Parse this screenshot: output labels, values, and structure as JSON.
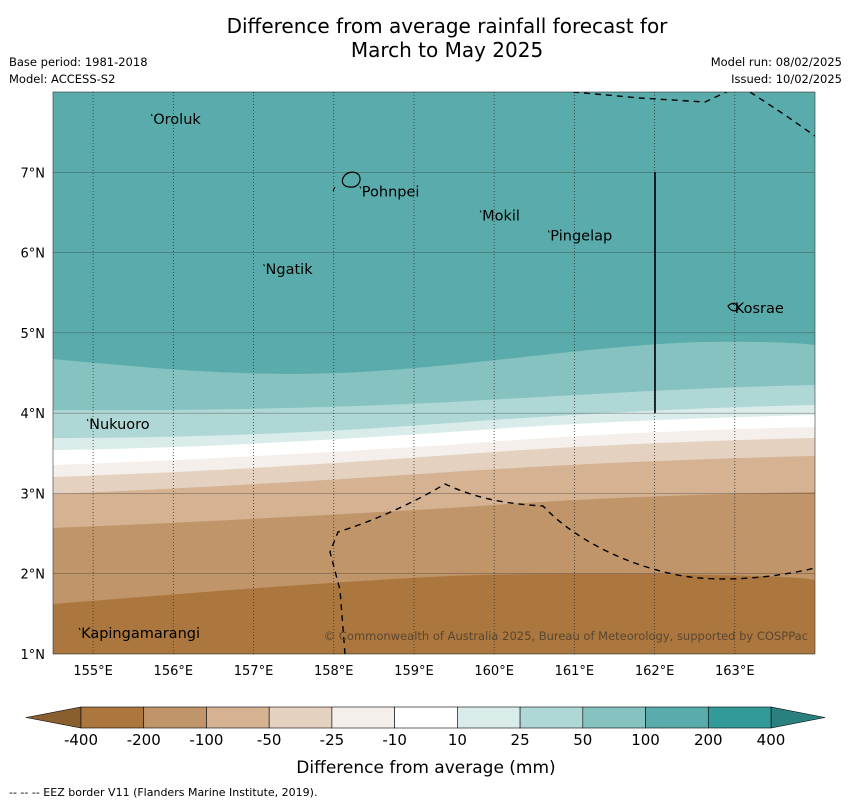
{
  "title_line1": "Difference from average rainfall forecast for",
  "title_line2": "March to May 2025",
  "base_period": "Base period: 1981-2018",
  "model": "Model: ACCESS-S2",
  "model_run": "Model run: 08/02/2025",
  "issued": "Issued: 10/02/2025",
  "copyright": "© Commonwealth of Australia 2025, Bureau of Meteorology, supported by COSPPac",
  "footer_note": "--  --  -- EEZ border V11 (Flanders Marine Institute, 2019).",
  "map": {
    "lon_min": 154.5,
    "lon_max": 164.0,
    "lat_min": 1.0,
    "lat_max": 8.0,
    "lon_ticks": [
      155,
      156,
      157,
      158,
      159,
      160,
      161,
      162,
      163
    ],
    "lon_tick_labels": [
      "155°E",
      "156°E",
      "157°E",
      "158°E",
      "159°E",
      "160°E",
      "161°E",
      "162°E",
      "163°E"
    ],
    "lat_ticks": [
      1,
      2,
      3,
      4,
      5,
      6,
      7
    ],
    "lat_tick_labels": [
      "1°N",
      "2°N",
      "3°N",
      "4°N",
      "5°N",
      "6°N",
      "7°N"
    ],
    "places": [
      {
        "name": "Oroluk",
        "lon": 155.75,
        "lat": 7.65
      },
      {
        "name": "Pohnpei",
        "lon": 158.35,
        "lat": 6.75
      },
      {
        "name": "Mokil",
        "lon": 159.85,
        "lat": 6.45
      },
      {
        "name": "Pingelap",
        "lon": 160.7,
        "lat": 6.2
      },
      {
        "name": "Ngatik",
        "lon": 157.15,
        "lat": 5.78
      },
      {
        "name": "Kosrae",
        "lon": 163.0,
        "lat": 5.3
      },
      {
        "name": "Nukuoro",
        "lon": 154.95,
        "lat": 3.85
      },
      {
        "name": "Kapingamarangi",
        "lon": 154.85,
        "lat": 1.25
      }
    ]
  },
  "legend": {
    "label": "Difference from average (mm)",
    "ticks": [
      "-400",
      "-200",
      "-100",
      "-50",
      "-25",
      "-10",
      "10",
      "25",
      "50",
      "100",
      "200",
      "400"
    ],
    "colors": [
      "#ab773e",
      "#c09569",
      "#d4b292",
      "#e5d1c0",
      "#f4efea",
      "#ffffff",
      "#d9ecea",
      "#afd7d6",
      "#85c2c0",
      "#5aabab",
      "#339a9a"
    ],
    "under_color": "#8a5f30",
    "over_color": "#2a7f7f"
  }
}
